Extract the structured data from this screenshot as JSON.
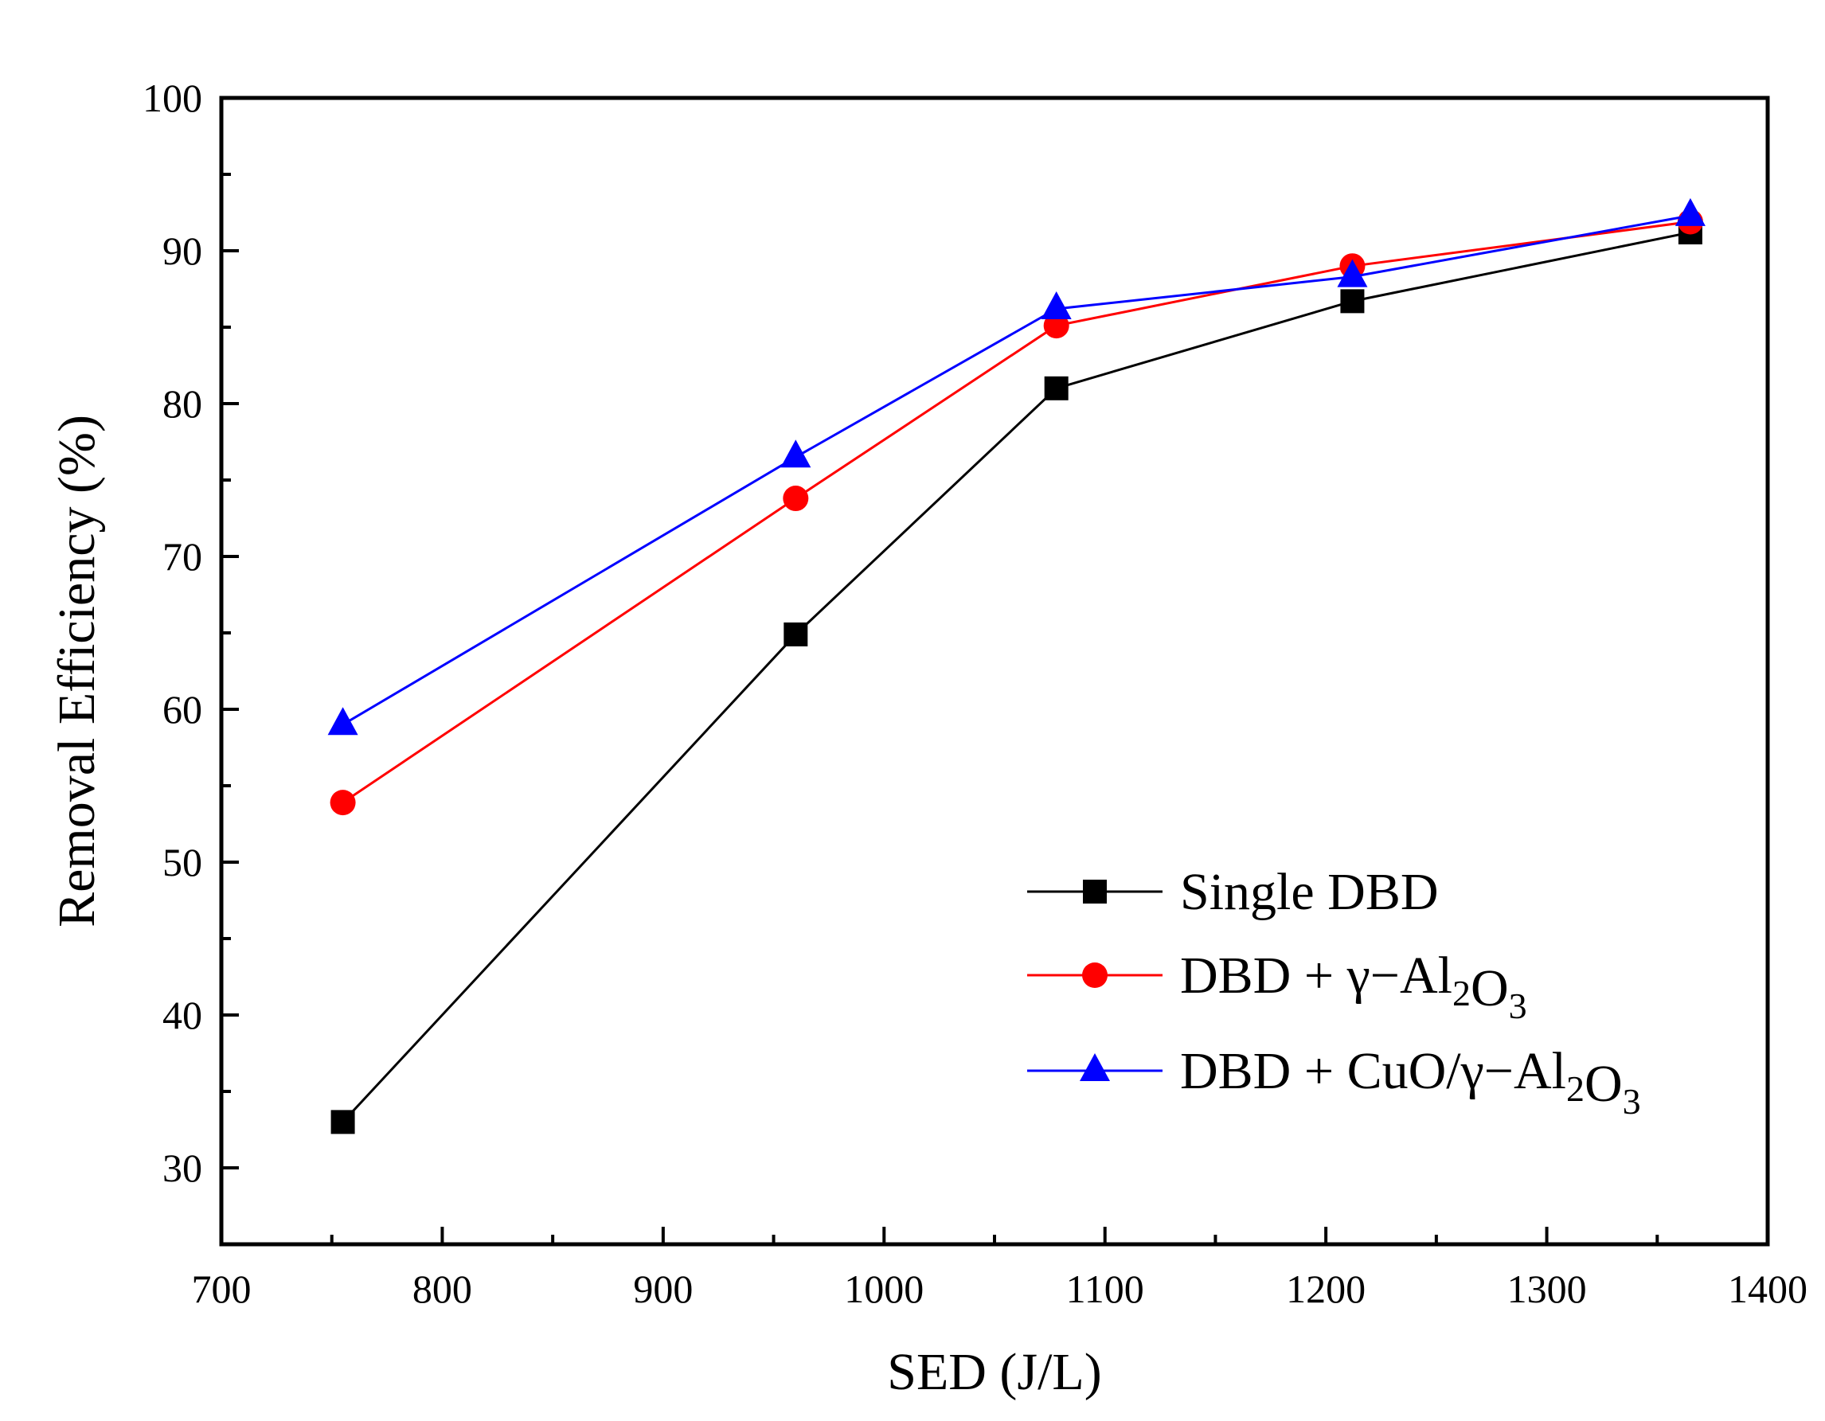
{
  "chart_data": {
    "type": "line",
    "xlabel": "SED (J/L)",
    "ylabel": "Removal Efficiency (%)",
    "xlim": [
      700,
      1400
    ],
    "ylim": [
      25,
      100
    ],
    "xticks": [
      700,
      800,
      900,
      1000,
      1100,
      1200,
      1300,
      1400
    ],
    "yticks": [
      30,
      40,
      50,
      60,
      70,
      80,
      90,
      100
    ],
    "grid": false,
    "legend_position": "bottom-right",
    "series": [
      {
        "name": "Single DBD",
        "color": "#000000",
        "marker": "square",
        "x": [
          755,
          960,
          1078,
          1212,
          1365
        ],
        "y": [
          33.0,
          64.9,
          81.0,
          86.7,
          91.2
        ]
      },
      {
        "name": "DBD + γ−Al2O3",
        "color": "#ff0000",
        "marker": "circle",
        "x": [
          755,
          960,
          1078,
          1212,
          1365
        ],
        "y": [
          53.9,
          73.8,
          85.1,
          89.0,
          91.9
        ]
      },
      {
        "name": "DBD + CuO/γ−Al2O3",
        "color": "#0000ff",
        "marker": "triangle",
        "x": [
          755,
          960,
          1078,
          1212,
          1365
        ],
        "y": [
          59.0,
          76.5,
          86.2,
          88.3,
          92.3
        ]
      }
    ]
  }
}
